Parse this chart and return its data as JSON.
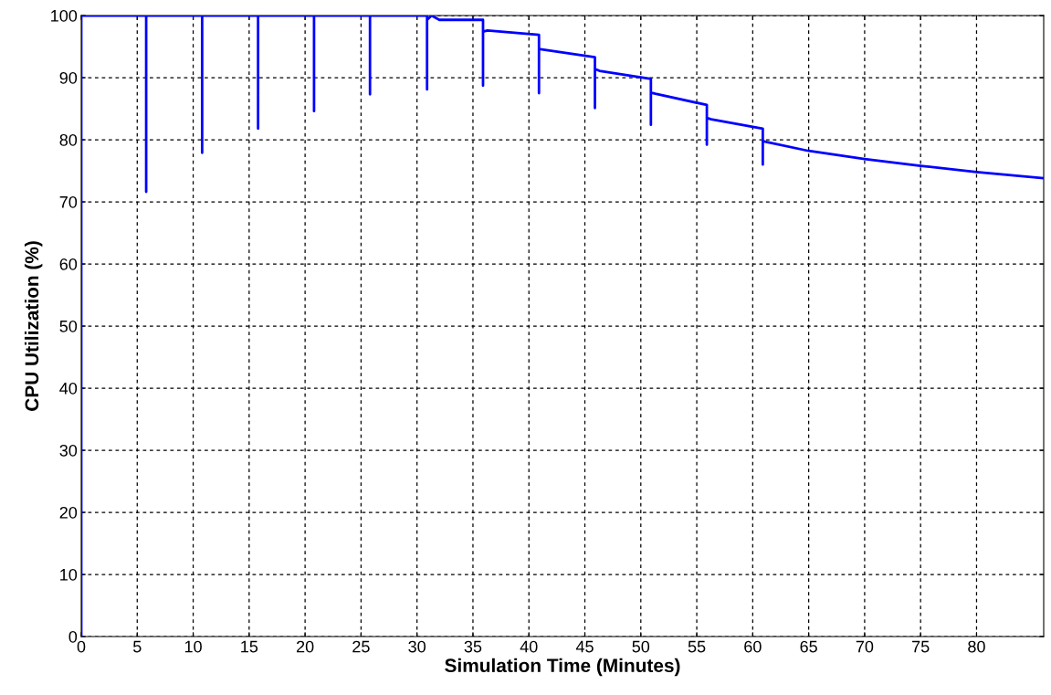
{
  "chart_data": {
    "type": "line",
    "xlabel": "Simulation Time (Minutes)",
    "ylabel": "CPU Utilization (%)",
    "xlim": [
      0,
      86
    ],
    "ylim": [
      0,
      100
    ],
    "xticks": [
      0,
      5,
      10,
      15,
      20,
      25,
      30,
      35,
      40,
      45,
      50,
      55,
      60,
      65,
      70,
      75,
      80
    ],
    "yticks": [
      0,
      10,
      20,
      30,
      40,
      50,
      60,
      70,
      80,
      90,
      100
    ],
    "grid": true,
    "line_style": "solid",
    "marker": "none",
    "series": [
      {
        "color": "#0000ff",
        "x": [
          0,
          0,
          5.8,
          5.8,
          5.8,
          10.8,
          10.8,
          10.8,
          15.8,
          15.8,
          15.8,
          20.8,
          20.8,
          20.8,
          25.8,
          25.8,
          25.8,
          30.9,
          30.9,
          30.9,
          31.3,
          32,
          35.9,
          35.9,
          35.9,
          36.3,
          40.9,
          40.9,
          40.9,
          41.3,
          45.9,
          45.9,
          45.9,
          46.3,
          50.9,
          50.9,
          50.9,
          51.3,
          55.9,
          55.9,
          55.9,
          56.3,
          60.9,
          60.9,
          60.9,
          61.3,
          65,
          70,
          75,
          80,
          86
        ],
        "values": [
          0,
          100,
          100,
          71.6,
          100,
          100,
          77.9,
          100,
          100,
          81.8,
          100,
          100,
          84.6,
          100,
          100,
          87.3,
          100,
          100,
          88.1,
          99.3,
          100,
          99.3,
          99.3,
          88.7,
          97.4,
          97.6,
          96.9,
          87.5,
          94.6,
          94.5,
          93.3,
          85.1,
          91.4,
          91.1,
          89.8,
          82.4,
          87.6,
          87.4,
          85.6,
          79.2,
          83.5,
          83.3,
          81.8,
          76,
          79.8,
          79.6,
          78.2,
          76.9,
          75.8,
          74.8,
          73.8
        ]
      }
    ]
  }
}
